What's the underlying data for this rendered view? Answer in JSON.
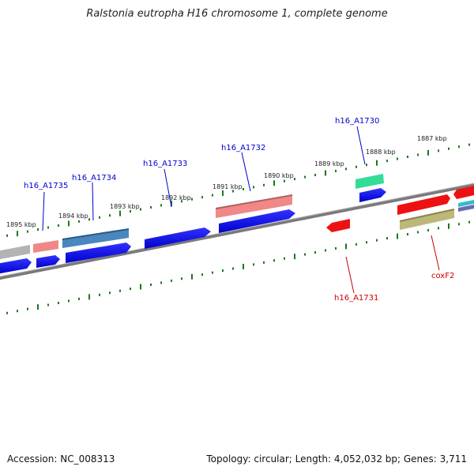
{
  "title": "Ralstonia eutropha H16 chromosome 1, complete genome",
  "footer": {
    "accession": "Accession: NC_008313",
    "summary": "Topology: circular; Length: 4,052,032 bp; Genes: 3,711"
  },
  "scale_labels": [
    "1895 kbp",
    "1894 kbp",
    "1893 kbp",
    "1892 kbp",
    "1891 kbp",
    "1890 kbp",
    "1889 kbp",
    "1888 kbp",
    "1887 kbp"
  ],
  "gene_labels": [
    {
      "name": "h16_A1735",
      "color": "#0000cc"
    },
    {
      "name": "h16_A1734",
      "color": "#0000cc"
    },
    {
      "name": "h16_A1733",
      "color": "#0000cc"
    },
    {
      "name": "h16_A1732",
      "color": "#0000cc"
    },
    {
      "name": "h16_A1730",
      "color": "#0000cc"
    },
    {
      "name": "h16_A1731",
      "color": "#cc0000"
    },
    {
      "name": "coxF2",
      "color": "#cc0000"
    }
  ],
  "colors": {
    "backbone": "#808080",
    "ticks": "#1a7a1a",
    "blue_gene": "#0000ee",
    "red_gene": "#ee0000",
    "pink_gene": "#f08080",
    "steel_gene": "#4682b4",
    "aqua_gene": "#33dd99",
    "olive_gene": "#bdb76b",
    "gray_gene": "#b0b0b0"
  }
}
